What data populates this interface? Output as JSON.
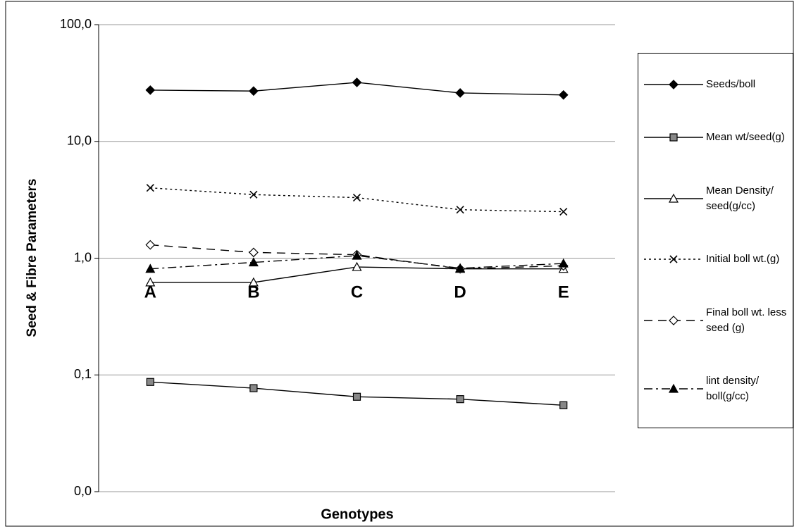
{
  "chart_data": {
    "type": "line",
    "y_label": "Seed & Fibre Parameters",
    "x_label": "Genotypes",
    "categories": [
      "A",
      "B",
      "C",
      "D",
      "E"
    ],
    "log_scale": true,
    "grid": true,
    "legend": "right",
    "ylim": [
      0.01,
      100
    ],
    "yticks": [
      {
        "value": 0.01,
        "label": "0,0"
      },
      {
        "value": 0.1,
        "label": "0,1"
      },
      {
        "value": 1,
        "label": "1,0"
      },
      {
        "value": 10,
        "label": "10,0"
      },
      {
        "value": 100,
        "label": "100,0"
      }
    ],
    "series": [
      {
        "name": "Seeds/boll",
        "color": "#000000",
        "marker": "diamond-filled",
        "dash": "solid",
        "values": [
          27.5,
          27,
          32,
          26,
          25
        ]
      },
      {
        "name": "Mean wt/seed(g)",
        "color": "#000000",
        "marker": "square-gray",
        "dash": "solid",
        "values": [
          0.087,
          0.077,
          0.065,
          0.062,
          0.055
        ]
      },
      {
        "name": "Mean Density/ seed(g/cc)",
        "color": "#000000",
        "marker": "triangle-open",
        "dash": "solid",
        "values": [
          0.62,
          0.62,
          0.84,
          0.81,
          0.81
        ]
      },
      {
        "name": "Initial boll wt.(g)",
        "color": "#000000",
        "marker": "x",
        "dash": "dotted",
        "values": [
          4.0,
          3.5,
          3.3,
          2.6,
          2.5
        ]
      },
      {
        "name": "Final boll wt. less seed (g)",
        "color": "#000000",
        "marker": "diamond-open",
        "dash": "dashed",
        "values": [
          1.3,
          1.12,
          1.07,
          0.81,
          0.86
        ]
      },
      {
        "name": "lint density/ boll(g/cc)",
        "color": "#000000",
        "marker": "triangle-filled",
        "dash": "dashdot",
        "values": [
          0.81,
          0.92,
          1.05,
          0.82,
          0.9
        ]
      }
    ]
  }
}
